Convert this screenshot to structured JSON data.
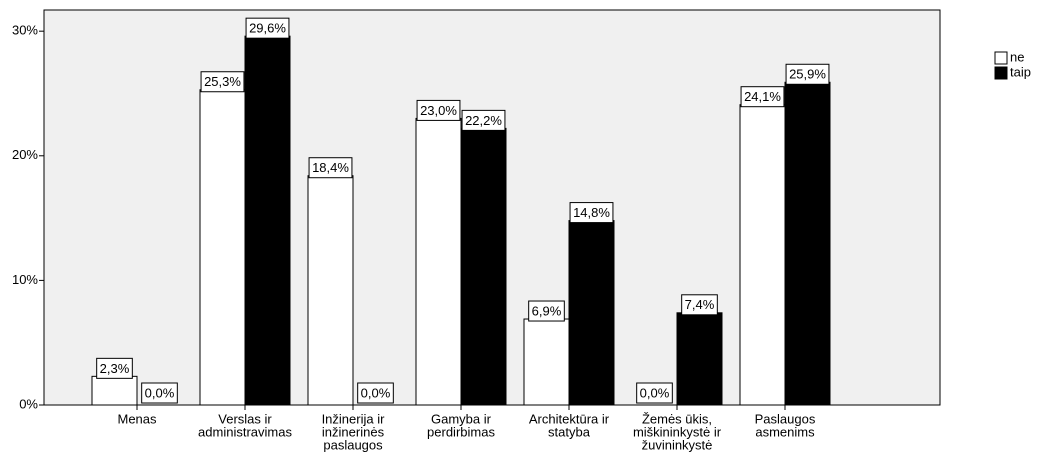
{
  "chart_data": {
    "type": "bar",
    "categories": [
      [
        "Menas"
      ],
      [
        "Verslas ir",
        "administravimas"
      ],
      [
        "Inžinerija ir",
        "inžinerinės",
        "paslaugos"
      ],
      [
        "Gamyba ir",
        "perdirbimas"
      ],
      [
        "Architektūra ir",
        "statyba"
      ],
      [
        "Žemės ūkis,",
        "miškininkystė ir",
        "žuvininkystė"
      ],
      [
        "Paslaugos",
        "asmenims"
      ]
    ],
    "series": [
      {
        "name": "ne",
        "color": "#ffffff",
        "values": [
          2.3,
          25.3,
          18.4,
          23.0,
          6.9,
          0.0,
          24.1
        ],
        "value_labels": [
          "2,3%",
          "25,3%",
          "18,4%",
          "23,0%",
          "6,9%",
          "0,0%",
          "24,1%"
        ]
      },
      {
        "name": "taip",
        "color": "#000000",
        "values": [
          0.0,
          29.6,
          0.0,
          22.2,
          14.8,
          7.4,
          25.9
        ],
        "value_labels": [
          "0,0%",
          "29,6%",
          "0,0%",
          "22,2%",
          "14,8%",
          "7,4%",
          "25,9%"
        ]
      }
    ],
    "ylim": [
      0,
      31.7
    ],
    "yticks": [
      {
        "value": 0,
        "label": "0%"
      },
      {
        "value": 10,
        "label": "10%"
      },
      {
        "value": 20,
        "label": "20%"
      },
      {
        "value": 30,
        "label": "30%"
      }
    ],
    "legend": "right"
  }
}
